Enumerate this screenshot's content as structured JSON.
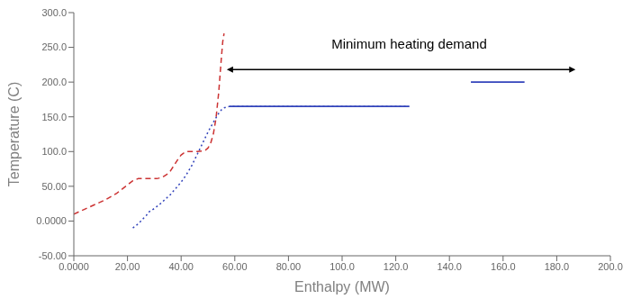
{
  "chart_data": {
    "type": "line",
    "xlabel": "Enthalpy (MW)",
    "ylabel": "Temperature (C)",
    "xlim": [
      0,
      200
    ],
    "ylim": [
      -50,
      300
    ],
    "xticks": [
      {
        "value": 0,
        "label": "0.0000"
      },
      {
        "value": 20,
        "label": "20.00"
      },
      {
        "value": 40,
        "label": "40.00"
      },
      {
        "value": 60,
        "label": "60.00"
      },
      {
        "value": 80,
        "label": "80.00"
      },
      {
        "value": 100,
        "label": "100.0"
      },
      {
        "value": 120,
        "label": "120.0"
      },
      {
        "value": 140,
        "label": "140.0"
      },
      {
        "value": 160,
        "label": "160.0"
      },
      {
        "value": 180,
        "label": "180.0"
      },
      {
        "value": 200,
        "label": "200.0"
      }
    ],
    "yticks": [
      {
        "value": -50,
        "label": "-50.00"
      },
      {
        "value": 0,
        "label": "0.0000"
      },
      {
        "value": 50,
        "label": "50.00"
      },
      {
        "value": 100,
        "label": "100.0"
      },
      {
        "value": 150,
        "label": "150.0"
      },
      {
        "value": 200,
        "label": "200.0"
      },
      {
        "value": 250,
        "label": "250.0"
      },
      {
        "value": 300,
        "label": "300.0"
      }
    ],
    "grid": false,
    "series": [
      {
        "color": "#cc3333",
        "line_style": "dashed",
        "x": [
          0,
          4,
          8,
          12,
          16,
          20,
          22,
          24,
          26,
          27.5,
          28,
          29,
          31,
          33,
          35,
          36,
          37,
          38,
          39,
          40,
          41,
          42,
          43,
          44,
          46,
          48,
          49,
          50,
          51,
          52,
          53,
          54,
          55,
          55.5,
          56
        ],
        "values": [
          10,
          17,
          24,
          31,
          40,
          52,
          58,
          61,
          61,
          61,
          61,
          61,
          61,
          63,
          68,
          72,
          78,
          84,
          90,
          95,
          98,
          100,
          100,
          100,
          100,
          101,
          102,
          105,
          112,
          125,
          148,
          185,
          235,
          258,
          270
        ]
      },
      {
        "color": "#3344bb",
        "line_style": "dotted",
        "x": [
          22,
          23,
          24,
          25,
          26,
          27,
          28,
          30,
          32,
          34,
          36,
          38,
          40,
          42,
          44,
          46,
          48,
          50,
          52,
          54,
          55,
          56,
          57,
          58,
          60,
          65,
          70,
          80,
          90,
          100,
          110,
          120,
          125
        ],
        "values": [
          -10,
          -7,
          -4,
          0,
          4,
          8,
          13,
          18,
          24,
          31,
          38,
          47,
          56,
          67,
          80,
          96,
          112,
          128,
          142,
          155,
          160,
          163,
          164,
          165,
          165,
          165,
          165,
          165,
          165,
          165,
          165,
          165,
          165
        ]
      },
      {
        "color": "#3344bb",
        "line_style": "solid",
        "x": [
          58,
          125
        ],
        "values": [
          165,
          165
        ]
      },
      {
        "color": "#3344bb",
        "line_style": "solid",
        "x": [
          148,
          168
        ],
        "values": [
          200,
          200
        ]
      }
    ],
    "arrows": [
      {
        "x": [
          57,
          187
        ],
        "y": 218
      }
    ],
    "annotations": [
      {
        "text": "Minimum heating demand",
        "x": 125,
        "y": 248
      }
    ]
  }
}
